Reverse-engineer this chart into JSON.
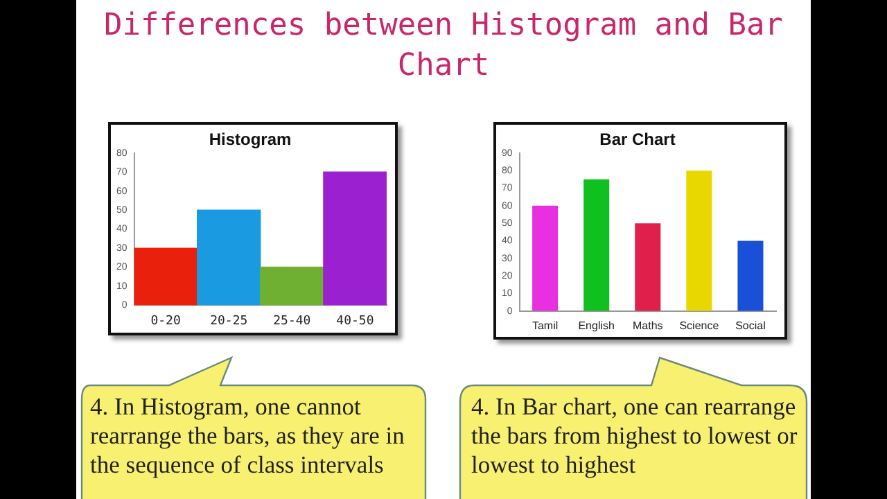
{
  "chart_data": [
    {
      "type": "bar",
      "title": "Histogram",
      "values": [
        30,
        50,
        20,
        70
      ],
      "colors": [
        "#e8200c",
        "#1a9ae0",
        "#70b030",
        "#9a20d0"
      ],
      "categories": [
        "0-20",
        "20-25",
        "25-40",
        "40-50"
      ],
      "ylim": [
        0,
        80
      ],
      "yticks": [
        0,
        10,
        20,
        30,
        40,
        50,
        60,
        70,
        80
      ],
      "grid": false,
      "legend": false,
      "annotations": [
        "Differences between Histogram and Bar Chart",
        "4. In Histogram, one cannot rearrange the bars, as they are in the sequence of class intervals"
      ]
    },
    {
      "type": "bar",
      "title": "Bar Chart",
      "categories": [
        "Tamil",
        "English",
        "Maths",
        "Science",
        "Social"
      ],
      "values": [
        60,
        75,
        50,
        80,
        40
      ],
      "colors": [
        "#e830e0",
        "#10c020",
        "#e0204a",
        "#e8d800",
        "#1a4fd8"
      ],
      "ylim": [
        0,
        90
      ],
      "yticks": [
        0,
        10,
        20,
        30,
        40,
        50,
        60,
        70,
        80,
        90
      ],
      "grid": false,
      "legend": false,
      "annotations": [
        "4. In Bar chart, one can rearrange the bars from highest to lowest or lowest to highest"
      ]
    }
  ]
}
